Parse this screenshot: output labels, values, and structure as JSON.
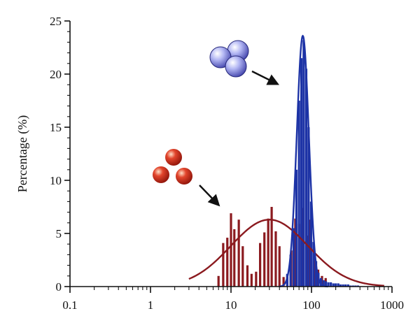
{
  "chart_data": {
    "type": "bar",
    "ylabel": "Percentage (%)",
    "xlabel": "",
    "xscale": "log",
    "xlim": [
      0.1,
      1000
    ],
    "ylim": [
      0,
      25
    ],
    "x_tick_labels": [
      "0.1",
      "1",
      "10",
      "100",
      "1000"
    ],
    "y_tick_labels": [
      "0",
      "5",
      "10",
      "15",
      "20",
      "25"
    ],
    "grid": false,
    "legend": "none",
    "series": [
      {
        "color": "#8b1a1f",
        "kind": "histogram",
        "bins": [
          {
            "x": 7.0,
            "y": 1.0
          },
          {
            "x": 8.0,
            "y": 4.1
          },
          {
            "x": 9.0,
            "y": 4.6
          },
          {
            "x": 10.0,
            "y": 6.9
          },
          {
            "x": 11.0,
            "y": 5.4
          },
          {
            "x": 12.5,
            "y": 6.3
          },
          {
            "x": 14.0,
            "y": 3.8
          },
          {
            "x": 16.0,
            "y": 2.0
          },
          {
            "x": 18.0,
            "y": 1.2
          },
          {
            "x": 20.5,
            "y": 1.4
          },
          {
            "x": 23.0,
            "y": 4.1
          },
          {
            "x": 26.0,
            "y": 5.1
          },
          {
            "x": 29.0,
            "y": 6.4
          },
          {
            "x": 32.0,
            "y": 7.5
          },
          {
            "x": 36.0,
            "y": 5.2
          },
          {
            "x": 40.0,
            "y": 3.8
          },
          {
            "x": 45.0,
            "y": 0.9
          },
          {
            "x": 50.0,
            "y": 1.1
          },
          {
            "x": 56.0,
            "y": 3.4
          },
          {
            "x": 63.0,
            "y": 6.4
          },
          {
            "x": 70.0,
            "y": 5.9
          },
          {
            "x": 78.0,
            "y": 7.4
          },
          {
            "x": 87.0,
            "y": 4.8
          },
          {
            "x": 97.0,
            "y": 6.3
          },
          {
            "x": 108.0,
            "y": 2.6
          },
          {
            "x": 121.0,
            "y": 1.6
          },
          {
            "x": 135.0,
            "y": 1.0
          },
          {
            "x": 150.0,
            "y": 0.8
          }
        ],
        "fit": {
          "model": "lognormal",
          "peak_x": 30,
          "peak_y": 6.3,
          "sigma_log10": 0.48,
          "x_range": [
            3,
            800
          ]
        }
      },
      {
        "color": "#1d33a6",
        "kind": "histogram",
        "bins": [
          {
            "x": 50.0,
            "y": 1.2
          },
          {
            "x": 55.0,
            "y": 3.0
          },
          {
            "x": 60.0,
            "y": 5.5
          },
          {
            "x": 65.0,
            "y": 11.0
          },
          {
            "x": 70.0,
            "y": 17.5
          },
          {
            "x": 75.0,
            "y": 21.5
          },
          {
            "x": 80.0,
            "y": 23.2
          },
          {
            "x": 86.0,
            "y": 20.5
          },
          {
            "x": 92.0,
            "y": 15.0
          },
          {
            "x": 99.0,
            "y": 8.0
          },
          {
            "x": 106.0,
            "y": 4.2
          },
          {
            "x": 114.0,
            "y": 2.4
          },
          {
            "x": 122.0,
            "y": 1.3
          },
          {
            "x": 131.0,
            "y": 0.8
          },
          {
            "x": 141.0,
            "y": 0.6
          },
          {
            "x": 151.0,
            "y": 0.5
          },
          {
            "x": 162.0,
            "y": 0.4
          },
          {
            "x": 174.0,
            "y": 0.4
          },
          {
            "x": 187.0,
            "y": 0.3
          },
          {
            "x": 200.0,
            "y": 0.3
          },
          {
            "x": 215.0,
            "y": 0.3
          },
          {
            "x": 230.0,
            "y": 0.2
          },
          {
            "x": 247.0,
            "y": 0.2
          },
          {
            "x": 265.0,
            "y": 0.2
          },
          {
            "x": 285.0,
            "y": 0.2
          },
          {
            "x": 305.0,
            "y": 0.1
          },
          {
            "x": 328.0,
            "y": 0.1
          },
          {
            "x": 352.0,
            "y": 0.1
          },
          {
            "x": 378.0,
            "y": 0.1
          }
        ],
        "fit": {
          "model": "lognormal",
          "peak_x": 78,
          "peak_y": 23.6,
          "sigma_log10": 0.075,
          "x_range": [
            40,
            160
          ]
        }
      }
    ],
    "annotations": [
      {
        "kind": "particle-cluster",
        "particles": 3,
        "color": "#c0281c",
        "points_to_series": 0
      },
      {
        "kind": "particle-cluster",
        "particles": 3,
        "color": "#6f78e0",
        "points_to_series": 1
      }
    ]
  }
}
